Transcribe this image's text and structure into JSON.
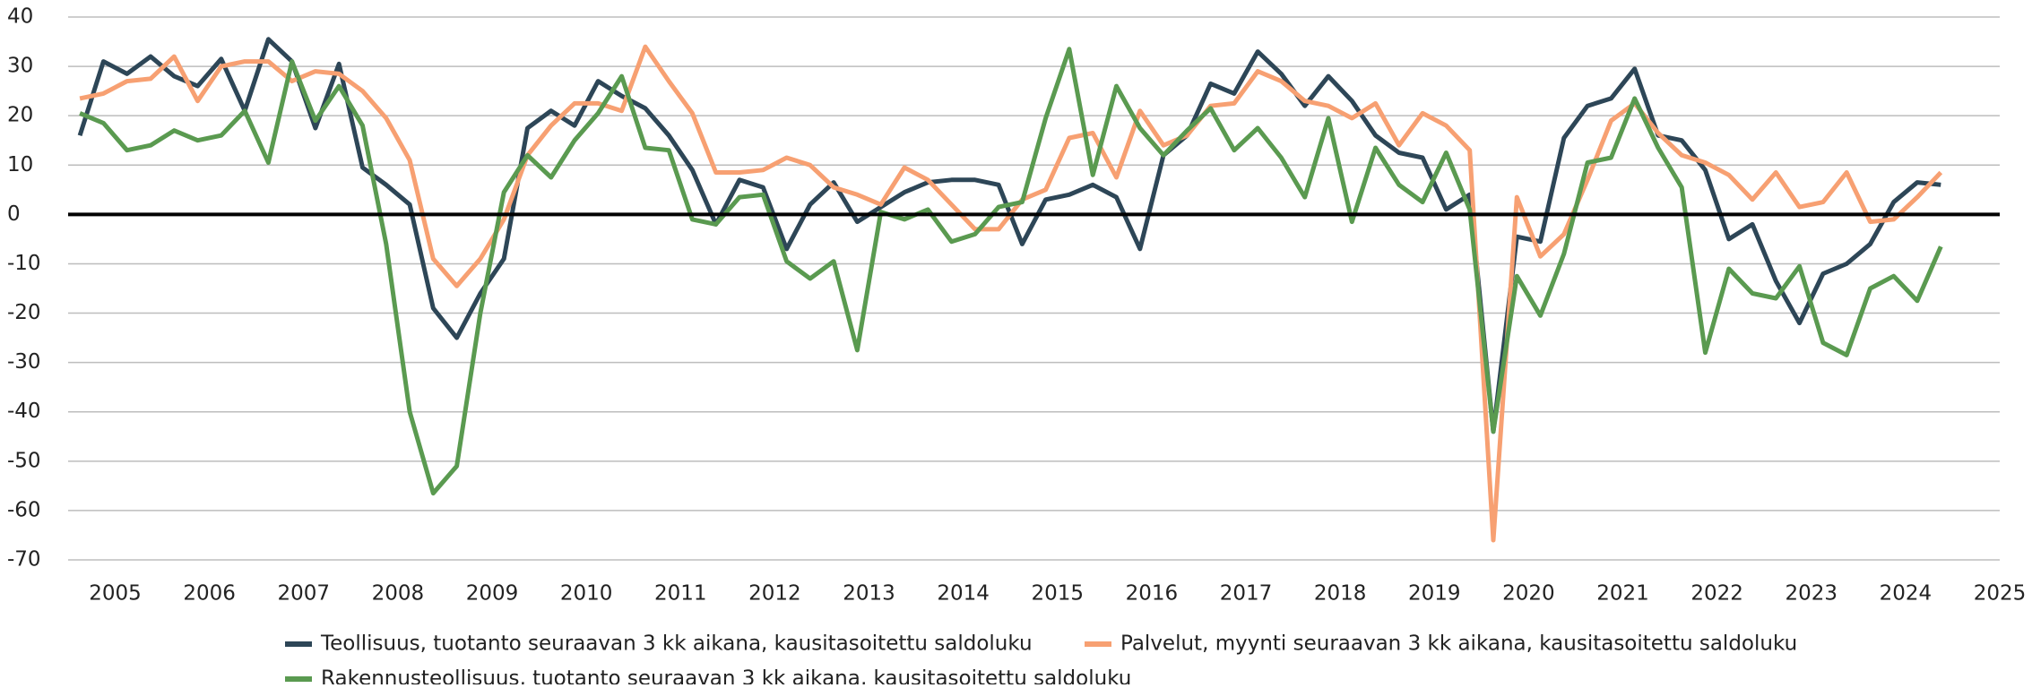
{
  "chart_data": {
    "type": "line",
    "x": [
      2004.625,
      2004.875,
      2005.125,
      2005.375,
      2005.625,
      2005.875,
      2006.125,
      2006.375,
      2006.625,
      2006.875,
      2007.125,
      2007.375,
      2007.625,
      2007.875,
      2008.125,
      2008.375,
      2008.625,
      2008.875,
      2009.125,
      2009.375,
      2009.625,
      2009.875,
      2010.125,
      2010.375,
      2010.625,
      2010.875,
      2011.125,
      2011.375,
      2011.625,
      2011.875,
      2012.125,
      2012.375,
      2012.625,
      2012.875,
      2013.125,
      2013.375,
      2013.625,
      2013.875,
      2014.125,
      2014.375,
      2014.625,
      2014.875,
      2015.125,
      2015.375,
      2015.625,
      2015.875,
      2016.125,
      2016.375,
      2016.625,
      2016.875,
      2017.125,
      2017.375,
      2017.625,
      2017.875,
      2018.125,
      2018.375,
      2018.625,
      2018.875,
      2019.125,
      2019.375,
      2019.625,
      2019.875,
      2020.125,
      2020.375,
      2020.625,
      2020.875,
      2021.125,
      2021.375,
      2021.625,
      2021.875,
      2022.125,
      2022.375,
      2022.625,
      2022.875,
      2023.125,
      2023.375,
      2023.625,
      2023.875,
      2024.125,
      2024.375
    ],
    "series": [
      {
        "name": "Teollisuus, tuotanto seuraavan 3 kk aikana, kausitasoitettu saldoluku",
        "color": "#2d4657",
        "values": [
          16,
          31,
          28.5,
          32,
          28,
          26,
          31.5,
          21,
          35.5,
          31,
          17.5,
          30.5,
          9.5,
          6,
          2,
          -19,
          -25,
          -16,
          -9,
          17.5,
          21,
          18,
          27,
          24,
          21.5,
          16,
          9,
          -2,
          7,
          5.5,
          -7,
          2,
          6.5,
          -1.5,
          1.5,
          4.5,
          6.5,
          7,
          7,
          6,
          -6,
          3,
          4,
          6,
          3.5,
          -7,
          12,
          16,
          26.5,
          24.5,
          33,
          28.5,
          22,
          28,
          23,
          16,
          12.5,
          11.5,
          1,
          4,
          -44,
          -4.5,
          -5.5,
          15.5,
          22,
          23.5,
          29.5,
          16,
          15,
          9,
          -5,
          -2,
          -13.5,
          -22,
          -12,
          -10,
          -6,
          2.5,
          6.5,
          6
        ]
      },
      {
        "name": "Palvelut, myynti seuraavan 3 kk aikana, kausitasoitettu saldoluku",
        "color": "#f7a072",
        "values": [
          23.5,
          24.5,
          27,
          27.5,
          32,
          23,
          30,
          31,
          31,
          27,
          29,
          28.5,
          25,
          19.5,
          11,
          -9,
          -14.5,
          -9,
          -1,
          12,
          18,
          22.5,
          22.5,
          21,
          34,
          27,
          20.5,
          8.5,
          8.5,
          9,
          11.5,
          10,
          5.5,
          4,
          2,
          9.5,
          7,
          2,
          -3,
          -3,
          3,
          5,
          15.5,
          16.5,
          7.5,
          21,
          14,
          16,
          22,
          22.5,
          29,
          27,
          23,
          22,
          19.5,
          22.5,
          14,
          20.5,
          18,
          13,
          -66,
          3.5,
          -8.5,
          -4,
          7,
          19,
          22.5,
          16.5,
          12,
          10.5,
          8,
          3,
          8.5,
          1.5,
          2.5,
          8.5,
          -1.5,
          -1,
          3.5,
          8.5
        ]
      },
      {
        "name": "Rakennusteollisuus, tuotanto seuraavan 3 kk aikana, kausitasoitettu saldoluku",
        "color": "#5a9a50",
        "values": [
          20.5,
          18.5,
          13,
          14,
          17,
          15,
          16,
          21,
          10.5,
          31,
          19,
          26,
          18,
          -6,
          -40,
          -56.5,
          -51,
          -20,
          4.5,
          12,
          7.5,
          15,
          20.5,
          28,
          13.5,
          13,
          -1,
          -2,
          3.5,
          4,
          -9.5,
          -13,
          -9.5,
          -27.5,
          0.5,
          -1,
          1,
          -5.5,
          -4,
          1.5,
          2.5,
          19.5,
          33.5,
          8,
          26,
          17.5,
          12,
          17,
          21.5,
          13,
          17.5,
          11.5,
          3.5,
          19.5,
          -1.5,
          13.5,
          6,
          2.5,
          12.5,
          1,
          -44,
          -12.5,
          -20.5,
          -8,
          10.5,
          11.5,
          23.5,
          13.5,
          5.5,
          -28,
          -11,
          -16,
          -17,
          -10.5,
          -26,
          -28.5,
          -15,
          -12.5,
          -17.5,
          -6.5
        ]
      }
    ],
    "xlim": [
      2004.5,
      2025
    ],
    "xticks": [
      2005,
      2006,
      2007,
      2008,
      2009,
      2010,
      2011,
      2012,
      2013,
      2014,
      2015,
      2016,
      2017,
      2018,
      2019,
      2020,
      2021,
      2022,
      2023,
      2024,
      2025
    ],
    "ylim": [
      -70,
      40
    ],
    "yticks": [
      -70,
      -60,
      -50,
      -40,
      -30,
      -20,
      -10,
      0,
      10,
      20,
      30,
      40
    ],
    "grid": true,
    "legend": "bottom"
  }
}
